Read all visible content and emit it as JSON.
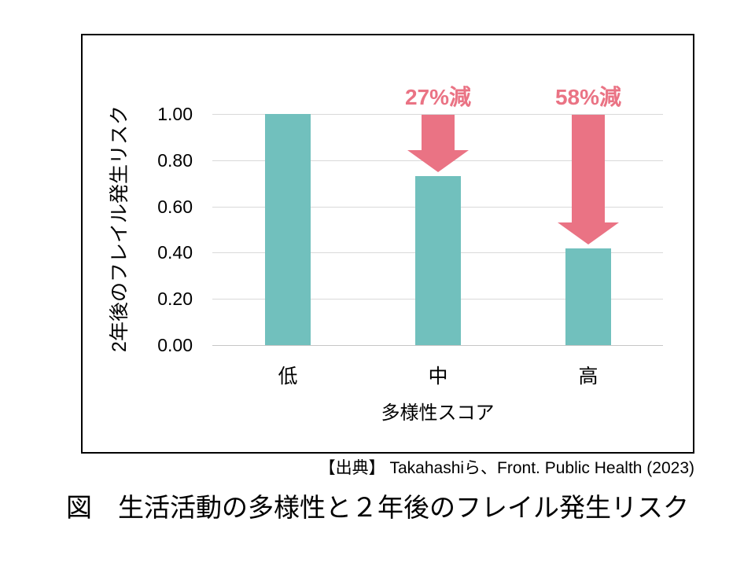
{
  "chart_data": {
    "type": "bar",
    "categories": [
      "低",
      "中",
      "高"
    ],
    "values": [
      1.0,
      0.73,
      0.42
    ],
    "title": "",
    "xlabel": "多様性スコア",
    "ylabel": "2年後のフレイル発生リスク",
    "ylim": [
      0,
      1.0
    ],
    "yticks": [
      "1.00",
      "0.80",
      "0.60",
      "0.40",
      "0.20",
      "0.00"
    ],
    "grid": true,
    "legend_position": "none",
    "bar_color": "#71C0BD",
    "annotation_color": "#EA7384",
    "gridline_color": "#D9D9D9",
    "baseline_color": "#C6C6C6",
    "annotations": [
      {
        "category": "中",
        "label": "27%減",
        "icon": "down-arrow"
      },
      {
        "category": "高",
        "label": "58%減",
        "icon": "down-arrow"
      }
    ]
  },
  "source": "【出典】 Takahashiら、Front. Public Health (2023)",
  "caption": "図　生活活動の多様性と２年後のフレイル発生リスク"
}
